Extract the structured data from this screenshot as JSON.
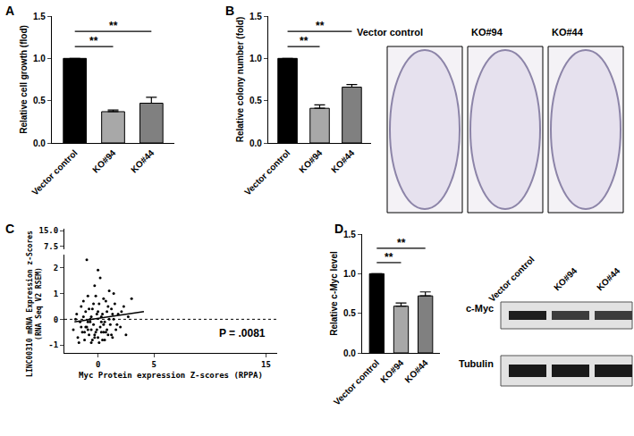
{
  "chart_data": [
    {
      "type": "bar",
      "panel": "A",
      "categories": [
        "Vector control",
        "KO#94",
        "KO#44"
      ],
      "values": [
        1,
        0.37,
        0.47
      ],
      "errors": [
        0,
        0.02,
        0.07
      ],
      "colors": [
        "#000000",
        "#a8a8a8",
        "#808080"
      ],
      "ylabel": "Relative cell growth (flod)",
      "ylim": [
        0,
        1.5
      ],
      "yticks": [
        {
          "value": 0,
          "label": "0.0"
        },
        {
          "value": 0.5,
          "label": "0.5"
        },
        {
          "value": 1,
          "label": "1.0"
        },
        {
          "value": 1.5,
          "label": "1.5"
        }
      ],
      "annotations": [
        {
          "text": "**",
          "from": "Vector control",
          "to": "KO#94"
        },
        {
          "text": "**",
          "from": "Vector control",
          "to": "KO#44"
        }
      ]
    },
    {
      "type": "bar",
      "panel": "B",
      "categories": [
        "Vector control",
        "KO#94",
        "KO#44"
      ],
      "values": [
        1,
        0.41,
        0.66
      ],
      "errors": [
        0,
        0.04,
        0.03
      ],
      "colors": [
        "#000000",
        "#a8a8a8",
        "#808080"
      ],
      "ylabel": "Relative colony number (fold)",
      "ylim": [
        0,
        1.5
      ],
      "yticks": [
        {
          "value": 0,
          "label": "0.0"
        },
        {
          "value": 0.5,
          "label": "0.5"
        },
        {
          "value": 1,
          "label": "1.0"
        },
        {
          "value": 1.5,
          "label": "1.5"
        }
      ],
      "annotations": [
        {
          "text": "**",
          "from": "Vector control",
          "to": "KO#94"
        },
        {
          "text": "**",
          "from": "Vector control",
          "to": "KO#44"
        }
      ],
      "plate_labels": [
        "Vector control",
        "KO#94",
        "KO#44"
      ]
    },
    {
      "type": "scatter",
      "panel": "C",
      "x": [
        -2.2,
        -1.9,
        -1.8,
        -1.6,
        -1.5,
        -1.4,
        -1.3,
        -1.2,
        -1.1,
        -1.0,
        -0.9,
        -0.8,
        -0.7,
        -0.6,
        -0.5,
        -0.4,
        -0.3,
        -0.2,
        -0.1,
        0.0,
        0.1,
        0.2,
        0.3,
        0.4,
        0.5,
        0.6,
        0.7,
        0.8,
        0.9,
        1.0,
        1.1,
        1.2,
        1.3,
        1.4,
        1.5,
        1.6,
        1.8,
        2.0,
        2.3,
        2.7,
        -2.0,
        -1.7,
        -1.5,
        -1.3,
        -1.2,
        -1.0,
        -0.9,
        -0.8,
        -0.6,
        -0.5,
        -0.4,
        -0.3,
        -0.2,
        -0.1,
        0.0,
        0.1,
        0.2,
        0.3,
        0.4,
        0.5,
        0.6,
        0.7,
        0.8,
        1.0,
        1.2,
        1.4,
        1.7,
        2.1,
        -1.1,
        -0.7,
        0.9,
        0.0,
        -0.3,
        1.3,
        0.5,
        -0.6,
        2.5,
        3.0,
        -0.9,
        0.3
      ],
      "y": [
        -0.4,
        0.2,
        -0.7,
        -0.1,
        0.5,
        -0.5,
        0.1,
        -0.8,
        0.3,
        -0.3,
        0.9,
        -0.6,
        0.0,
        -0.9,
        0.4,
        -0.2,
        1.3,
        -0.5,
        0.2,
        -0.7,
        0.6,
        -0.3,
        0.1,
        -0.8,
        0.8,
        -0.1,
        -0.5,
        0.3,
        -0.6,
        1.1,
        -0.2,
        0.4,
        -0.7,
        0.0,
        0.6,
        -0.4,
        0.2,
        -0.3,
        0.5,
        0.1,
        0.0,
        -0.9,
        -0.3,
        0.7,
        -0.5,
        2.3,
        -0.1,
        0.4,
        -0.4,
        -0.8,
        0.6,
        -0.6,
        0.9,
        -0.4,
        0.3,
        -0.9,
        1.6,
        -0.5,
        0.2,
        -0.2,
        -0.8,
        0.7,
        -0.4,
        0.0,
        -0.6,
        1.0,
        -0.2,
        0.3,
        -0.3,
        -0.1,
        0.5,
        1.9,
        -0.7,
        0.2,
        -0.5,
        0.1,
        -0.6,
        0.8,
        -0.4,
        -0.1
      ],
      "color": "#000000",
      "fit": {
        "x": [
          -2.1,
          4.1
        ],
        "y": [
          -0.1,
          0.3
        ]
      },
      "reference_y": 0,
      "xlabel": "Myc Protein expression Z-scores (RPPA)",
      "ylabel": [
        "LINC00310 mRNA Expression z-Scores",
        "(RNA Seq V2 RSEM)"
      ],
      "xlim": [
        -3,
        16
      ],
      "xticks": [
        0,
        5,
        15
      ],
      "ylim": [
        -1.3,
        2.5
      ],
      "yticks": [
        -1,
        0,
        1,
        2
      ],
      "y2lim": [
        6,
        16
      ],
      "y2ticks": [
        {
          "value": 7.5,
          "label": "7.5"
        },
        {
          "value": 15,
          "label": "15.0"
        }
      ],
      "annotations": [
        {
          "text": "P = .0081"
        }
      ]
    },
    {
      "type": "bar",
      "panel": "D",
      "categories": [
        "Vector control",
        "KO#94",
        "KO#44"
      ],
      "values": [
        1,
        0.59,
        0.72
      ],
      "errors": [
        0,
        0.04,
        0.05
      ],
      "colors": [
        "#000000",
        "#a8a8a8",
        "#808080"
      ],
      "ylabel": "Relative c-Myc level",
      "ylim": [
        0,
        1.5
      ],
      "yticks": [
        {
          "value": 0,
          "label": "0.0"
        },
        {
          "value": 0.5,
          "label": "0.5"
        },
        {
          "value": 1,
          "label": "1.0"
        },
        {
          "value": 1.5,
          "label": "1.5"
        }
      ],
      "annotations": [
        {
          "text": "**",
          "from": "Vector control",
          "to": "KO#94"
        },
        {
          "text": "**",
          "from": "Vector control",
          "to": "KO#44"
        }
      ],
      "blot": {
        "lanes": [
          "Vector control",
          "KO#94",
          "KO#44"
        ],
        "rows": [
          "c-Myc",
          "Tubulin"
        ]
      }
    }
  ]
}
